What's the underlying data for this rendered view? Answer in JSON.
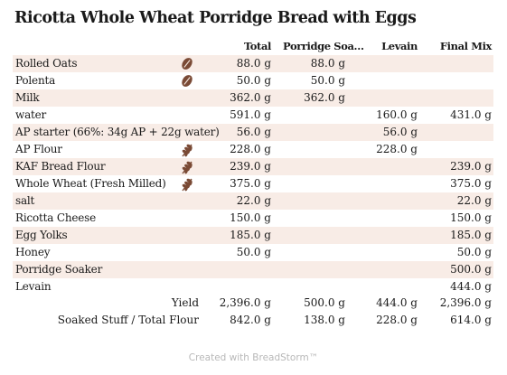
{
  "title": "Ricotta Whole Wheat Porridge Bread with Eggs",
  "columns": [
    "Total",
    "Porridge Soa…",
    "Levain",
    "Final Mix"
  ],
  "ingredients": [
    {
      "name": "Rolled Oats",
      "icon": "grain-bean-icon",
      "total": "88.0 g",
      "soaker": "88.0 g",
      "levain": "",
      "final": ""
    },
    {
      "name": "Polenta",
      "icon": "grain-bean-icon",
      "total": "50.0 g",
      "soaker": "50.0 g",
      "levain": "",
      "final": ""
    },
    {
      "name": "Milk",
      "icon": "",
      "total": "362.0 g",
      "soaker": "362.0 g",
      "levain": "",
      "final": ""
    },
    {
      "name": "water",
      "icon": "",
      "total": "591.0 g",
      "soaker": "",
      "levain": "160.0 g",
      "final": "431.0 g"
    },
    {
      "name": "AP starter (66%: 34g AP + 22g water)",
      "icon": "",
      "total": "56.0 g",
      "soaker": "",
      "levain": "56.0 g",
      "final": ""
    },
    {
      "name": "AP Flour",
      "icon": "wheat-icon",
      "total": "228.0 g",
      "soaker": "",
      "levain": "228.0 g",
      "final": ""
    },
    {
      "name": "KAF Bread Flour",
      "icon": "wheat-icon",
      "total": "239.0 g",
      "soaker": "",
      "levain": "",
      "final": "239.0 g"
    },
    {
      "name": "Whole Wheat (Fresh Milled)",
      "icon": "wheat-icon",
      "total": "375.0 g",
      "soaker": "",
      "levain": "",
      "final": "375.0 g"
    },
    {
      "name": "salt",
      "icon": "",
      "total": "22.0 g",
      "soaker": "",
      "levain": "",
      "final": "22.0 g"
    },
    {
      "name": "Ricotta Cheese",
      "icon": "",
      "total": "150.0 g",
      "soaker": "",
      "levain": "",
      "final": "150.0 g"
    },
    {
      "name": "Egg Yolks",
      "icon": "",
      "total": "185.0 g",
      "soaker": "",
      "levain": "",
      "final": "185.0 g"
    },
    {
      "name": "Honey",
      "icon": "",
      "total": "50.0 g",
      "soaker": "",
      "levain": "",
      "final": "50.0 g"
    },
    {
      "name": "Porridge Soaker",
      "icon": "",
      "total": "",
      "soaker": "",
      "levain": "",
      "final": "500.0 g"
    },
    {
      "name": "Levain",
      "icon": "",
      "total": "",
      "soaker": "",
      "levain": "",
      "final": "444.0 g"
    }
  ],
  "summary": [
    {
      "label": "Yield",
      "total": "2,396.0 g",
      "soaker": "500.0 g",
      "levain": "444.0 g",
      "final": "2,396.0 g"
    },
    {
      "label": "Soaked Stuff / Total Flour",
      "total": "842.0 g",
      "soaker": "138.0 g",
      "levain": "228.0 g",
      "final": "614.0 g"
    }
  ],
  "footer": "Created with BreadStorm™",
  "colors": {
    "row_shade": "#f8ece6",
    "icon_brown": "#7a4a35"
  }
}
